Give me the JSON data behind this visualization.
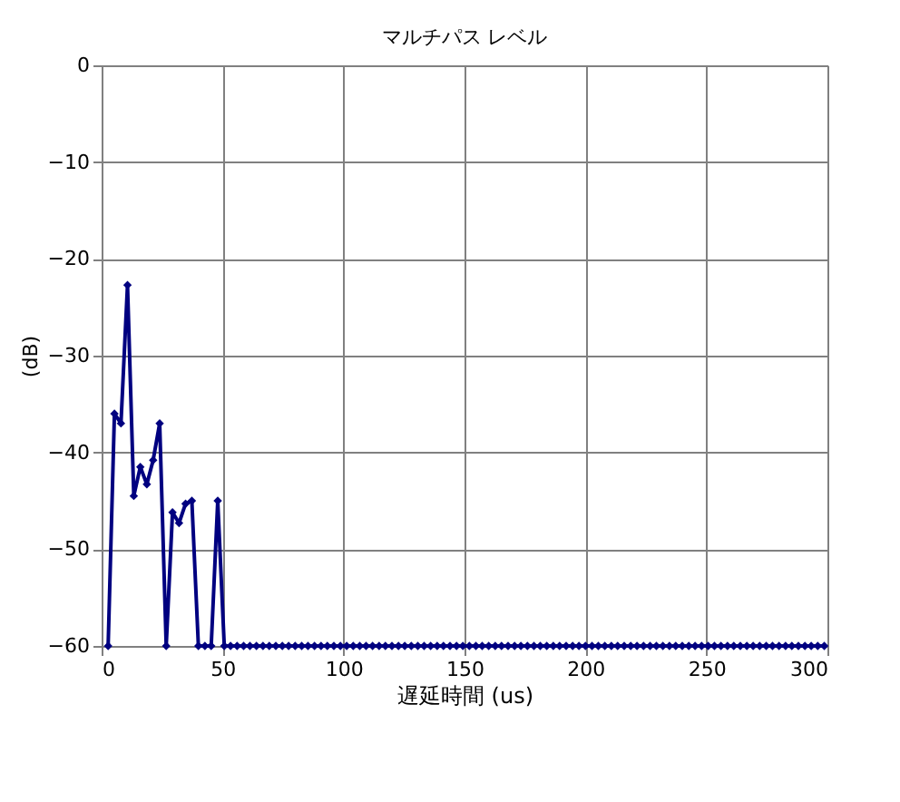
{
  "chart_data": {
    "type": "line",
    "title": "マルチパス レベル",
    "xlabel": "遅延時間 (us)",
    "ylabel": "(dB)",
    "x": [
      2.7,
      5.3,
      8,
      10.7,
      13.3,
      16,
      18.7,
      21.3,
      24,
      26.7,
      29.3,
      32,
      34.7,
      37.3,
      40,
      42.7,
      45.3,
      48,
      50.7,
      53.3,
      56,
      58.7,
      61.3,
      64,
      66.7,
      69.3,
      72,
      74.7,
      77.3,
      80,
      82.7,
      85.3,
      88,
      90.7,
      93.3,
      96,
      98.7,
      101.3,
      104,
      106.7,
      109.3,
      112,
      114.7,
      117.3,
      120,
      122.7,
      125.3,
      128,
      130.7,
      133.3,
      136,
      138.7,
      141.3,
      144,
      146.7,
      149.3,
      152,
      154.7,
      157.3,
      160,
      162.7,
      165.3,
      168,
      170.7,
      173.3,
      176,
      178.7,
      181.3,
      184,
      186.7,
      189.3,
      192,
      194.7,
      197.3,
      200,
      202.7,
      205.3,
      208,
      210.7,
      213.3,
      216,
      218.7,
      221.3,
      224,
      226.7,
      229.3,
      232,
      234.7,
      237.3,
      240,
      242.7,
      245.3,
      248,
      250.7,
      253.3,
      256,
      258.7,
      261.3,
      264,
      266.7,
      269.3,
      272,
      274.7,
      277.3,
      280,
      282.7,
      285.3,
      288,
      290.7,
      293.3,
      296,
      298.7
    ],
    "series": [
      {
        "color": "#000080",
        "values": [
          -60,
          -36,
          -37,
          -22.7,
          -44.5,
          -41.5,
          -43.3,
          -40.8,
          -37,
          -60,
          -46.2,
          -47.3,
          -45.3,
          -45,
          -60,
          -60,
          -60,
          -45,
          -60,
          -60,
          -60,
          -60,
          -60,
          -60,
          -60,
          -60,
          -60,
          -60,
          -60,
          -60,
          -60,
          -60,
          -60,
          -60,
          -60,
          -60,
          -60,
          -60,
          -60,
          -60,
          -60,
          -60,
          -60,
          -60,
          -60,
          -60,
          -60,
          -60,
          -60,
          -60,
          -60,
          -60,
          -60,
          -60,
          -60,
          -60,
          -60,
          -60,
          -60,
          -60,
          -60,
          -60,
          -60,
          -60,
          -60,
          -60,
          -60,
          -60,
          -60,
          -60,
          -60,
          -60,
          -60,
          -60,
          -60,
          -60,
          -60,
          -60,
          -60,
          -60,
          -60,
          -60,
          -60,
          -60,
          -60,
          -60,
          -60,
          -60,
          -60,
          -60,
          -60,
          -60,
          -60,
          -60,
          -60,
          -60,
          -60,
          -60,
          -60,
          -60,
          -60,
          -60,
          -60,
          -60,
          -60,
          -60,
          -60,
          -60,
          -60,
          -60,
          -60,
          -60
        ]
      }
    ],
    "xlim": [
      0,
      300
    ],
    "xticks": [
      0,
      50,
      100,
      150,
      200,
      250,
      300
    ],
    "ylim": [
      -60,
      0
    ],
    "yticks": [
      -60,
      -50,
      -40,
      -30,
      -20,
      -10,
      0
    ],
    "grid": true,
    "marker": "diamond",
    "line_style": "solid"
  }
}
